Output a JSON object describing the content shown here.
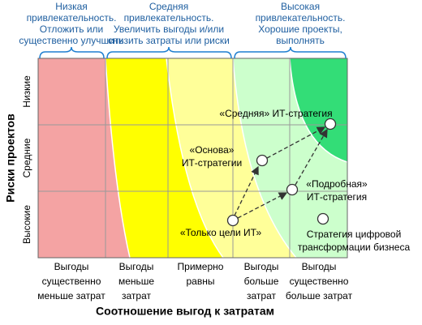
{
  "header": {
    "zones": [
      {
        "lines": [
          "Низкая",
          "привлекательность.",
          "Отложить или",
          "существенно улучшить"
        ]
      },
      {
        "lines": [
          "Средняя",
          "привлекательность.",
          "Увеличить выгоды и/или",
          "снизить затраты или риски"
        ]
      },
      {
        "lines": [
          "Высокая",
          "привлекательность.",
          "Хорошие проекты,",
          "выполнять"
        ]
      }
    ]
  },
  "y_axis": {
    "title": "Риски проектов",
    "levels": [
      "Низкие",
      "Средние",
      "Высокие"
    ]
  },
  "x_axis": {
    "title": "Соотношение выгод к затратам",
    "categories": [
      {
        "lines": [
          "Выгоды",
          "существенно",
          "меньше затрат"
        ]
      },
      {
        "lines": [
          "Выгоды",
          "меньше",
          "затрат"
        ]
      },
      {
        "lines": [
          "Примерно",
          "равны"
        ]
      },
      {
        "lines": [
          "Выгоды",
          "больше",
          "затрат"
        ]
      },
      {
        "lines": [
          "Выгоды",
          "существенно",
          "больше затрат"
        ]
      }
    ]
  },
  "points": [
    {
      "lines": [
        "«Только цели ИТ»"
      ]
    },
    {
      "lines": [
        "«Основа»",
        "ИТ-стратегии"
      ]
    },
    {
      "lines": [
        "«Подробная»",
        "ИТ-стратегия"
      ]
    },
    {
      "lines": [
        "«Средняя» ИТ-стратегия"
      ]
    },
    {
      "lines": [
        "Стратегия цифровой",
        "трансформации бизнеса"
      ]
    }
  ]
}
